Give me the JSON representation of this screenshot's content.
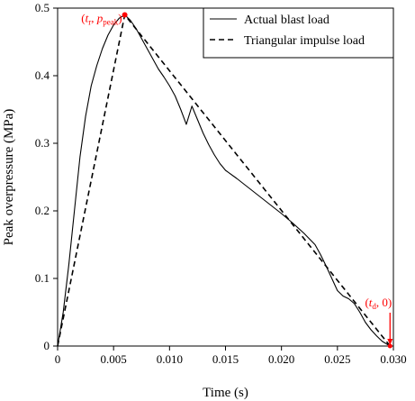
{
  "chart_data": {
    "type": "line",
    "xlabel": "Time (s)",
    "ylabel": "Peak overpressure (MPa)",
    "xlim": [
      0,
      0.03
    ],
    "ylim": [
      0,
      0.5
    ],
    "x_ticks": [
      0,
      0.005,
      0.01,
      0.015,
      0.02,
      0.025,
      0.03
    ],
    "x_tick_labels": [
      "0",
      "0.005",
      "0.010",
      "0.015",
      "0.020",
      "0.025",
      "0.030"
    ],
    "y_ticks": [
      0,
      0.1,
      0.2,
      0.3,
      0.4,
      0.5
    ],
    "y_tick_labels": [
      "0",
      "0.1",
      "0.2",
      "0.3",
      "0.4",
      "0.5"
    ],
    "grid": false,
    "legend_position": "top-right",
    "series": [
      {
        "name": "Actual blast load",
        "style": "solid",
        "color": "#000000",
        "points": [
          [
            0,
            0
          ],
          [
            0.0005,
            0.05
          ],
          [
            0.001,
            0.12
          ],
          [
            0.0015,
            0.2
          ],
          [
            0.002,
            0.28
          ],
          [
            0.0025,
            0.34
          ],
          [
            0.003,
            0.385
          ],
          [
            0.0035,
            0.415
          ],
          [
            0.004,
            0.44
          ],
          [
            0.0045,
            0.46
          ],
          [
            0.005,
            0.475
          ],
          [
            0.0055,
            0.485
          ],
          [
            0.006,
            0.49
          ],
          [
            0.0065,
            0.482
          ],
          [
            0.007,
            0.47
          ],
          [
            0.0075,
            0.455
          ],
          [
            0.008,
            0.44
          ],
          [
            0.0085,
            0.425
          ],
          [
            0.009,
            0.41
          ],
          [
            0.0095,
            0.398
          ],
          [
            0.01,
            0.385
          ],
          [
            0.0105,
            0.37
          ],
          [
            0.011,
            0.35
          ],
          [
            0.0115,
            0.328
          ],
          [
            0.012,
            0.355
          ],
          [
            0.0125,
            0.335
          ],
          [
            0.013,
            0.315
          ],
          [
            0.0135,
            0.298
          ],
          [
            0.014,
            0.283
          ],
          [
            0.0145,
            0.27
          ],
          [
            0.015,
            0.26
          ],
          [
            0.016,
            0.248
          ],
          [
            0.017,
            0.235
          ],
          [
            0.018,
            0.222
          ],
          [
            0.019,
            0.209
          ],
          [
            0.02,
            0.196
          ],
          [
            0.021,
            0.182
          ],
          [
            0.022,
            0.167
          ],
          [
            0.023,
            0.15
          ],
          [
            0.0235,
            0.135
          ],
          [
            0.024,
            0.118
          ],
          [
            0.0245,
            0.1
          ],
          [
            0.025,
            0.082
          ],
          [
            0.0255,
            0.074
          ],
          [
            0.026,
            0.07
          ],
          [
            0.0265,
            0.063
          ],
          [
            0.027,
            0.05
          ],
          [
            0.0275,
            0.035
          ],
          [
            0.028,
            0.024
          ],
          [
            0.0285,
            0.015
          ],
          [
            0.029,
            0.007
          ],
          [
            0.0295,
            0.002
          ],
          [
            0.0297,
            0
          ]
        ]
      },
      {
        "name": "Triangular impulse load",
        "style": "dashed",
        "color": "#000000",
        "points": [
          [
            0,
            0
          ],
          [
            0.006,
            0.49
          ],
          [
            0.0297,
            0
          ]
        ]
      }
    ],
    "annotations": [
      {
        "label_parts": [
          "(",
          "t",
          "r",
          ", ",
          "p",
          "peak",
          ")"
        ],
        "x": 0.006,
        "y": 0.49,
        "color": "#ff0000"
      },
      {
        "label_parts": [
          "(",
          "t",
          "d",
          ", 0)"
        ],
        "x": 0.0297,
        "y": 0,
        "color": "#ff0000"
      }
    ]
  }
}
